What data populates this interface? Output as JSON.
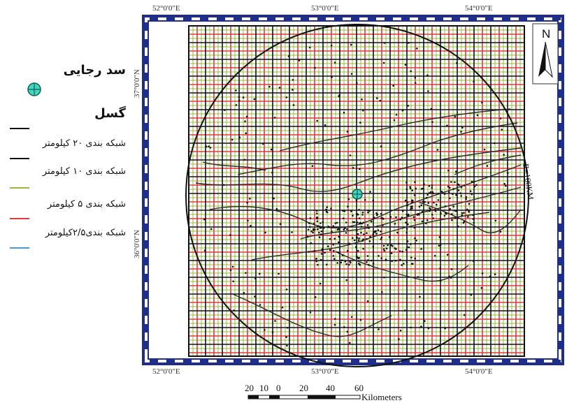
{
  "map": {
    "lon_labels": [
      "52°0'0\"E",
      "53°0'0\"E",
      "54°0'0\"E"
    ],
    "lat_labels": [
      "37°0'0\"N",
      "36°0'0\"N"
    ],
    "radius_label": "R=100KM",
    "north_label": "N",
    "colors": {
      "frame_blue": "#1f2e8c",
      "grid_20km": "#111111",
      "grid_10km": "#111111",
      "grid_5km": "#8fbf3a",
      "grid_2_5km": "#e0383c",
      "dam_marker": "#3fd6c2",
      "fault": "#2a2a2a"
    }
  },
  "legend": {
    "dam_title": "سد رجایی",
    "fault_title": "گسل",
    "items": [
      {
        "label": "شبکه بندی ۲۰ کیلومتر",
        "color": "#111111"
      },
      {
        "label": "شبکه بندی ۱۰ کیلومتر",
        "color": "#111111"
      },
      {
        "label": "شبکه بندی ۵ کیلومتر",
        "color": "#8fbf3a"
      },
      {
        "label": "شبکه بندی۲/۵کیلومتر",
        "color": "#e0383c"
      },
      {
        "label": "",
        "color": "#4a9ad8"
      }
    ]
  },
  "scalebar": {
    "ticks": [
      "20",
      "10",
      "0",
      "20",
      "40",
      "60"
    ],
    "unit": "Kilometers"
  }
}
